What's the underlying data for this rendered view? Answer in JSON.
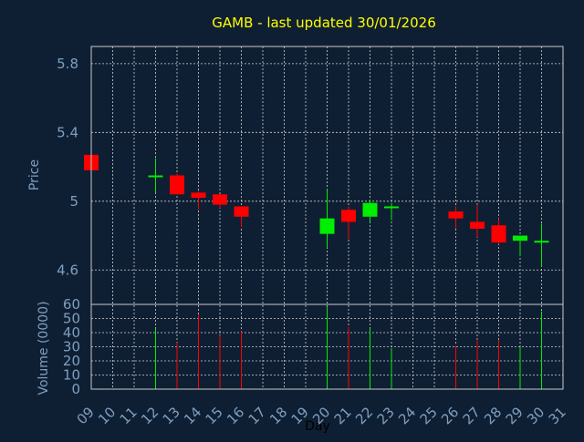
{
  "chart_data": {
    "type": "candlestick",
    "title": "GAMB - last updated 30/01/2026",
    "xlabel": "Day",
    "ylabel_price": "Price",
    "ylabel_volume": "Volume (0000)",
    "x_ticks": [
      "09",
      "10",
      "11",
      "12",
      "13",
      "14",
      "15",
      "16",
      "17",
      "18",
      "19",
      "20",
      "21",
      "22",
      "23",
      "24",
      "25",
      "26",
      "27",
      "28",
      "29",
      "30",
      "31"
    ],
    "price_ticks": [
      "4.6",
      "5",
      "5.4",
      "5.8"
    ],
    "volume_ticks": [
      "0",
      "10",
      "20",
      "30",
      "40",
      "50",
      "60"
    ],
    "price_range": [
      4.4,
      5.9
    ],
    "volume_range": [
      0,
      60
    ],
    "x_range": [
      9,
      31
    ],
    "grid": true,
    "colors": {
      "background": "#0f1f33",
      "up": "#00ee00",
      "down": "#ff0000",
      "axis_text": "#7f9fbf",
      "title": "#ffff00",
      "grid": "#d0d0d0"
    },
    "candles": [
      {
        "day": 9,
        "open": 5.27,
        "high": 5.27,
        "low": 5.18,
        "close": 5.18,
        "volume": 0
      },
      {
        "day": 12,
        "open": 5.14,
        "high": 5.25,
        "low": 5.05,
        "close": 5.15,
        "volume": 43
      },
      {
        "day": 13,
        "open": 5.15,
        "high": 5.16,
        "low": 5.04,
        "close": 5.04,
        "volume": 33
      },
      {
        "day": 14,
        "open": 5.05,
        "high": 5.06,
        "low": 4.95,
        "close": 5.02,
        "volume": 53
      },
      {
        "day": 15,
        "open": 5.04,
        "high": 5.04,
        "low": 4.96,
        "close": 4.98,
        "volume": 38
      },
      {
        "day": 16,
        "open": 4.97,
        "high": 4.97,
        "low": 4.85,
        "close": 4.91,
        "volume": 41
      },
      {
        "day": 20,
        "open": 4.81,
        "high": 5.07,
        "low": 4.73,
        "close": 4.9,
        "volume": 58
      },
      {
        "day": 21,
        "open": 4.95,
        "high": 4.97,
        "low": 4.78,
        "close": 4.88,
        "volume": 44
      },
      {
        "day": 22,
        "open": 4.91,
        "high": 5.01,
        "low": 4.88,
        "close": 4.99,
        "volume": 43
      },
      {
        "day": 23,
        "open": 4.96,
        "high": 4.99,
        "low": 4.89,
        "close": 4.97,
        "volume": 29
      },
      {
        "day": 26,
        "open": 4.94,
        "high": 4.97,
        "low": 4.84,
        "close": 4.9,
        "volume": 31
      },
      {
        "day": 27,
        "open": 4.88,
        "high": 4.98,
        "low": 4.79,
        "close": 4.84,
        "volume": 35
      },
      {
        "day": 28,
        "open": 4.86,
        "high": 4.9,
        "low": 4.75,
        "close": 4.76,
        "volume": 35
      },
      {
        "day": 29,
        "open": 4.77,
        "high": 4.8,
        "low": 4.68,
        "close": 4.8,
        "volume": 30
      },
      {
        "day": 30,
        "open": 4.76,
        "high": 4.87,
        "low": 4.62,
        "close": 4.77,
        "volume": 55
      }
    ]
  }
}
